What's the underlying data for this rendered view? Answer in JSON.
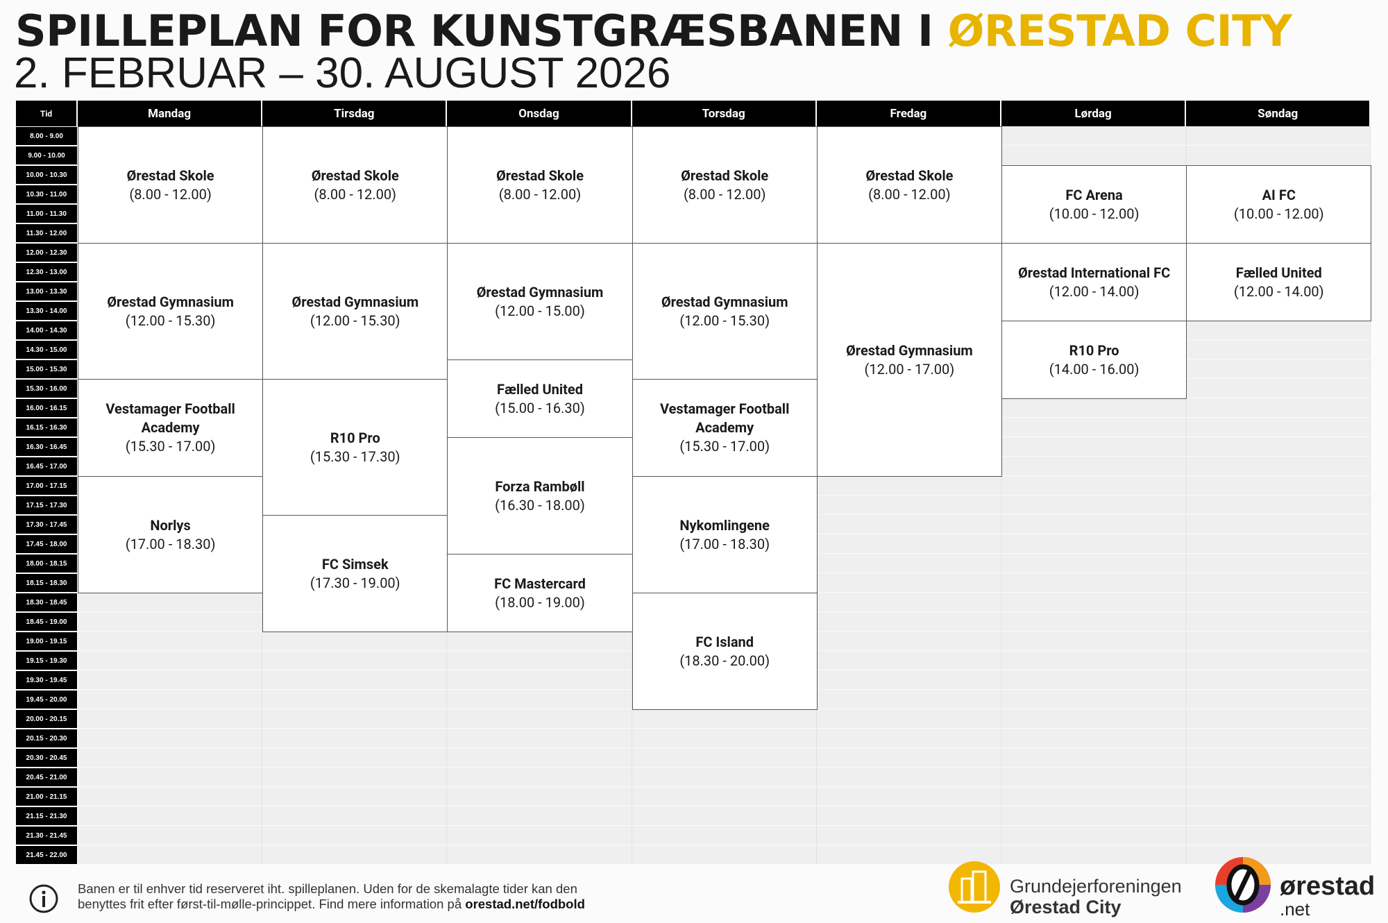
{
  "header": {
    "title": "SPILLEPLAN FOR KUNSTGRÆSBANEN I ",
    "highlight": "ØRESTAD CITY",
    "subtitle": "2. FEBRUAR – 30. AUGUST 2026"
  },
  "table": {
    "time_header": "Tid",
    "slots": [
      "8.00 - 9.00",
      "9.00 - 10.00",
      "10.00 - 10.30",
      "10.30 - 11.00",
      "11.00 - 11.30",
      "11.30 - 12.00",
      "12.00 - 12.30",
      "12.30 - 13.00",
      "13.00 - 13.30",
      "13.30 - 14.00",
      "14.00 - 14.30",
      "14.30 - 15.00",
      "15.00 - 15.30",
      "15.30 - 16.00",
      "16.00 - 16.15",
      "16.15 - 16.30",
      "16.30 - 16.45",
      "16.45 - 17.00",
      "17.00 - 17.15",
      "17.15 - 17.30",
      "17.30 - 17.45",
      "17.45 - 18.00",
      "18.00 - 18.15",
      "18.15 - 18.30",
      "18.30 - 18.45",
      "18.45 - 19.00",
      "19.00 - 19.15",
      "19.15 - 19.30",
      "19.30 - 19.45",
      "19.45 - 20.00",
      "20.00 - 20.15",
      "20.15 - 20.30",
      "20.30 - 20.45",
      "20.45 - 21.00",
      "21.00 - 21.15",
      "21.15 - 21.30",
      "21.30 - 21.45",
      "21.45 - 22.00"
    ],
    "columns": [
      {
        "day": "Mandag",
        "events": [
          {
            "name": "Ørestad Skole",
            "time": "(8.00 - 12.00)"
          },
          {
            "name": "Ørestad Gymnasium",
            "time": "(12.00 - 15.30)"
          },
          {
            "name": "Vestamager Football Academy",
            "time": "(15.30 - 17.00)"
          },
          {
            "name": "Norlys",
            "time": "(17.00 - 18.30)"
          }
        ]
      },
      {
        "day": "Tirsdag",
        "events": [
          {
            "name": "Ørestad Skole",
            "time": "(8.00 - 12.00)"
          },
          {
            "name": "Ørestad Gymnasium",
            "time": "(12.00 - 15.30)"
          },
          {
            "name": "R10 Pro",
            "time": "(15.30 - 17.30)"
          },
          {
            "name": "FC Simsek",
            "time": "(17.30 - 19.00)"
          }
        ]
      },
      {
        "day": "Onsdag",
        "events": [
          {
            "name": "Ørestad Skole",
            "time": "(8.00 - 12.00)"
          },
          {
            "name": "Ørestad Gymnasium",
            "time": "(12.00 - 15.00)"
          },
          {
            "name": "Fælled United",
            "time": "(15.00 - 16.30)"
          },
          {
            "name": "Forza Rambøll",
            "time": "(16.30 - 18.00)"
          },
          {
            "name": "FC Mastercard",
            "time": "(18.00 - 19.00)"
          }
        ]
      },
      {
        "day": "Torsdag",
        "events": [
          {
            "name": "Ørestad Skole",
            "time": "(8.00 - 12.00)"
          },
          {
            "name": "Ørestad Gymnasium",
            "time": "(12.00 - 15.30)"
          },
          {
            "name": "Vestamager Football Academy",
            "time": "(15.30 - 17.00)"
          },
          {
            "name": "Nykomlingene",
            "time": "(17.00 - 18.30)"
          },
          {
            "name": "FC Island",
            "time": "(18.30 - 20.00)"
          }
        ]
      },
      {
        "day": "Fredag",
        "events": [
          {
            "name": "Ørestad Skole",
            "time": "(8.00 - 12.00)"
          },
          {
            "name": "Ørestad Gymnasium",
            "time": "(12.00 - 17.00)"
          }
        ]
      },
      {
        "day": "Lørdag",
        "events": [
          {
            "name": "FC Arena",
            "time": "(10.00 - 12.00)"
          },
          {
            "name": "Ørestad International FC",
            "time": "(12.00 - 14.00)"
          },
          {
            "name": "R10 Pro",
            "time": "(14.00 - 16.00)"
          }
        ]
      },
      {
        "day": "Søndag",
        "events": [
          {
            "name": "AI FC",
            "time": "(10.00 - 12.00)"
          },
          {
            "name": "Fælled United",
            "time": "(12.00 - 14.00)"
          }
        ]
      }
    ]
  },
  "footer": {
    "lines": [
      "Banen er til enhver tid reserveret iht. spilleplanen. Uden for de skemalagte tider kan den",
      "benyttes frit efter først-til-mølle-princippet. Find mere information på "
    ],
    "link": "orestad.net/fodbold",
    "logo1": {
      "line1": "Grundejerforeningen",
      "line2": "Ørestad City"
    },
    "logo2": {
      "name": "ørestad",
      "suffix": ".net"
    }
  }
}
